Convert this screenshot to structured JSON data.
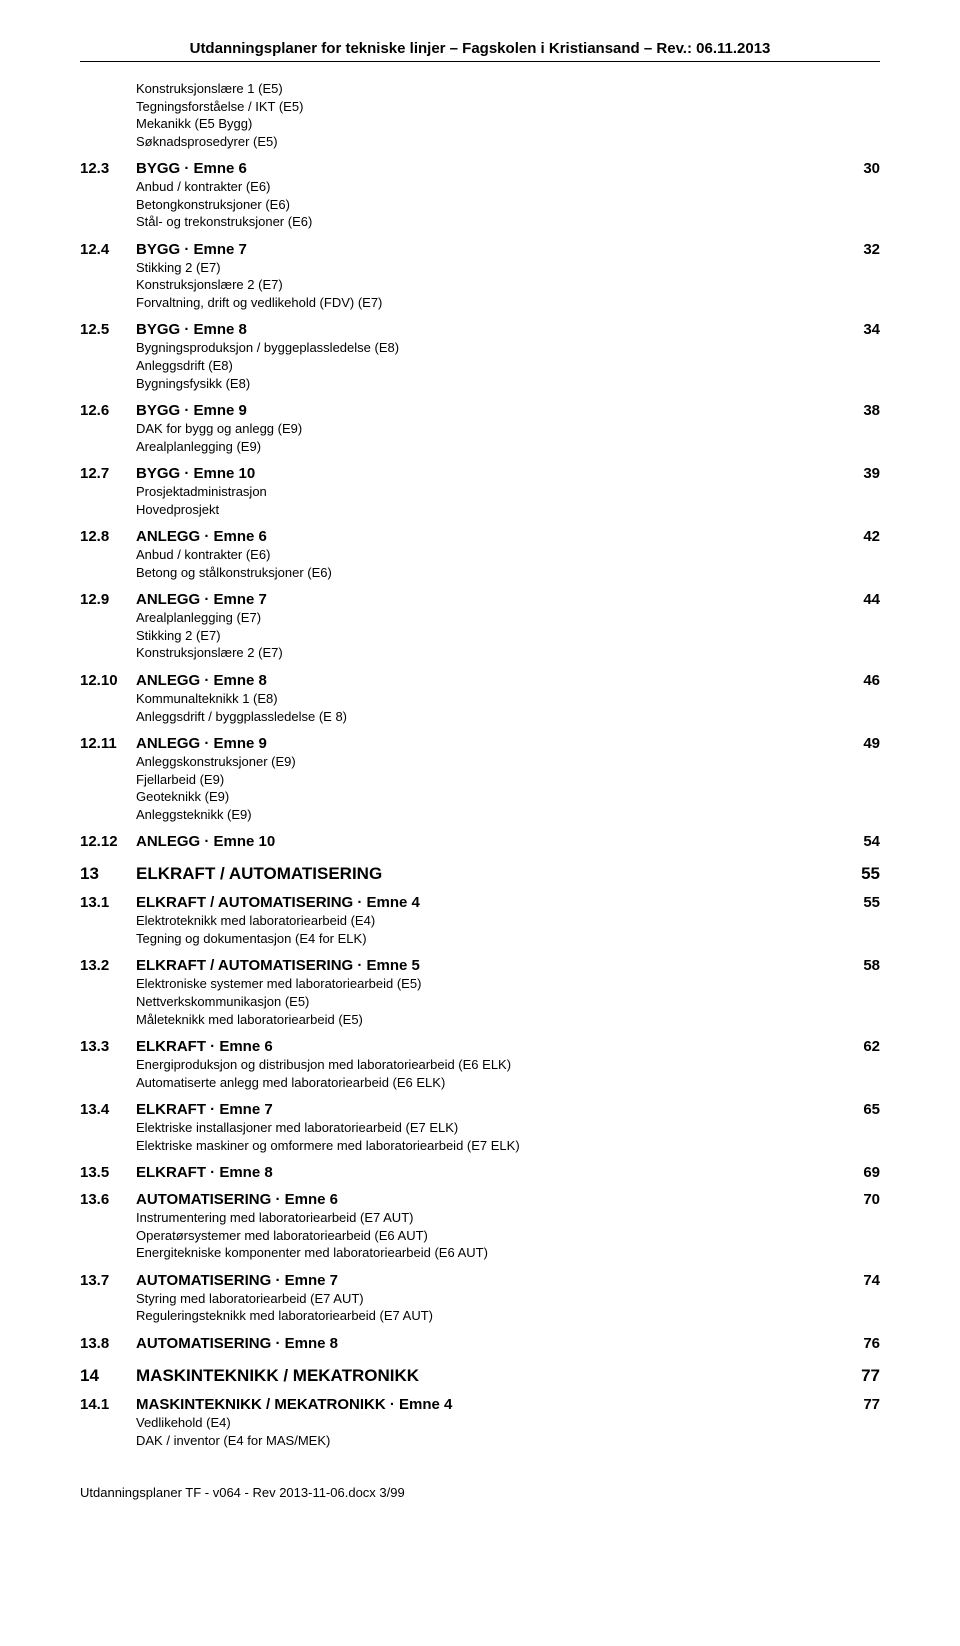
{
  "header": "Utdanningsplaner for tekniske linjer –  Fagskolen i Kristiansand  –  Rev.: 06.11.2013",
  "footer": "Utdanningsplaner TF - v064 - Rev 2013-11-06.docx       3/99",
  "entries": [
    {
      "level": "sub",
      "lines": [
        "Konstruksjonslære 1   (E5)",
        "Tegningsforståelse / IKT   (E5)",
        "Mekanikk   (E5  Bygg)",
        "Søknadsprosedyrer   (E5)"
      ]
    },
    {
      "level": 2,
      "num": "12.3",
      "title": "BYGG · Emne 6",
      "page": "30",
      "sub": [
        "Anbud / kontrakter   (E6)",
        "Betongkonstruksjoner   (E6)",
        "Stål- og trekonstruksjoner   (E6)"
      ]
    },
    {
      "level": 2,
      "num": "12.4",
      "title": "BYGG · Emne 7",
      "page": "32",
      "sub": [
        "Stikking 2   (E7)",
        "Konstruksjonslære 2   (E7)",
        "Forvaltning, drift og vedlikehold (FDV)   (E7)"
      ]
    },
    {
      "level": 2,
      "num": "12.5",
      "title": "BYGG · Emne 8",
      "page": "34",
      "sub": [
        "Bygningsproduksjon / byggeplassledelse   (E8)",
        "Anleggsdrift   (E8)",
        "Bygningsfysikk   (E8)"
      ]
    },
    {
      "level": 2,
      "num": "12.6",
      "title": "BYGG · Emne 9",
      "page": "38",
      "sub": [
        "DAK for bygg og anlegg    (E9)",
        "Arealplanlegging   (E9)"
      ]
    },
    {
      "level": 2,
      "num": "12.7",
      "title": "BYGG · Emne 10",
      "page": "39",
      "sub": [
        "Prosjektadministrasjon",
        "Hovedprosjekt"
      ]
    },
    {
      "level": 2,
      "num": "12.8",
      "title": "ANLEGG · Emne 6",
      "page": "42",
      "sub": [
        "Anbud / kontrakter   (E6)",
        "Betong og stålkonstruksjoner   (E6)"
      ]
    },
    {
      "level": 2,
      "num": "12.9",
      "title": "ANLEGG · Emne 7",
      "page": "44",
      "sub": [
        "Arealplanlegging   (E7)",
        "Stikking 2   (E7)",
        "Konstruksjonslære 2   (E7)"
      ]
    },
    {
      "level": 2,
      "num": "12.10",
      "title": "ANLEGG · Emne 8",
      "page": "46",
      "sub": [
        "Kommunalteknikk 1     (E8)",
        "Anleggsdrift / byggplassledelse   (E 8)"
      ]
    },
    {
      "level": 2,
      "num": "12.11",
      "title": "ANLEGG · Emne 9",
      "page": "49",
      "sub": [
        "Anleggskonstruksjoner   (E9)",
        "Fjellarbeid   (E9)",
        "Geoteknikk   (E9)",
        "Anleggsteknikk   (E9)"
      ]
    },
    {
      "level": 2,
      "num": "12.12",
      "title": "ANLEGG · Emne 10",
      "page": "54"
    },
    {
      "level": 1,
      "num": "13",
      "title": "ELKRAFT / AUTOMATISERING",
      "page": "55"
    },
    {
      "level": 2,
      "num": "13.1",
      "title": "ELKRAFT / AUTOMATISERING · Emne 4",
      "page": "55",
      "sub": [
        "Elektroteknikk med laboratoriearbeid   (E4)",
        "Tegning og dokumentasjon   (E4 for ELK)"
      ]
    },
    {
      "level": 2,
      "num": "13.2",
      "title": "ELKRAFT / AUTOMATISERING · Emne 5",
      "page": "58",
      "sub": [
        "Elektroniske systemer med laboratoriearbeid   (E5)",
        "Nettverkskommunikasjon   (E5)",
        "Måleteknikk med laboratoriearbeid   (E5)"
      ]
    },
    {
      "level": 2,
      "num": "13.3",
      "title": "ELKRAFT · Emne 6",
      "page": "62",
      "sub": [
        "Energiproduksjon og distribusjon med laboratoriearbeid   (E6  ELK)",
        "Automatiserte anlegg med laboratoriearbeid  (E6  ELK)"
      ]
    },
    {
      "level": 2,
      "num": "13.4",
      "title": "ELKRAFT · Emne 7",
      "page": "65",
      "sub": [
        "Elektriske installasjoner med laboratoriearbeid  (E7  ELK)",
        "Elektriske maskiner og omformere med laboratoriearbeid   (E7  ELK)"
      ]
    },
    {
      "level": 2,
      "num": "13.5",
      "title": "ELKRAFT · Emne 8",
      "page": "69"
    },
    {
      "level": 2,
      "num": "13.6",
      "title": "AUTOMATISERING · Emne 6",
      "page": "70",
      "sub": [
        "Instrumentering med laboratoriearbeid   (E7  AUT)",
        "Operatørsystemer med laboratoriearbeid   (E6  AUT)",
        "Energitekniske komponenter med laboratoriearbeid   (E6   AUT)"
      ]
    },
    {
      "level": 2,
      "num": "13.7",
      "title": "AUTOMATISERING · Emne 7",
      "page": "74",
      "sub": [
        "Styring med laboratoriearbeid   (E7  AUT)",
        "Reguleringsteknikk med laboratoriearbeid   (E7  AUT)"
      ]
    },
    {
      "level": 2,
      "num": "13.8",
      "title": "AUTOMATISERING · Emne 8",
      "page": "76"
    },
    {
      "level": 1,
      "num": "14",
      "title": "MASKINTEKNIKK / MEKATRONIKK",
      "page": "77"
    },
    {
      "level": 2,
      "num": "14.1",
      "title": "MASKINTEKNIKK / MEKATRONIKK · Emne 4",
      "page": "77",
      "sub": [
        "Vedlikehold   (E4)",
        "DAK / inventor       (E4 for MAS/MEK)"
      ]
    }
  ]
}
